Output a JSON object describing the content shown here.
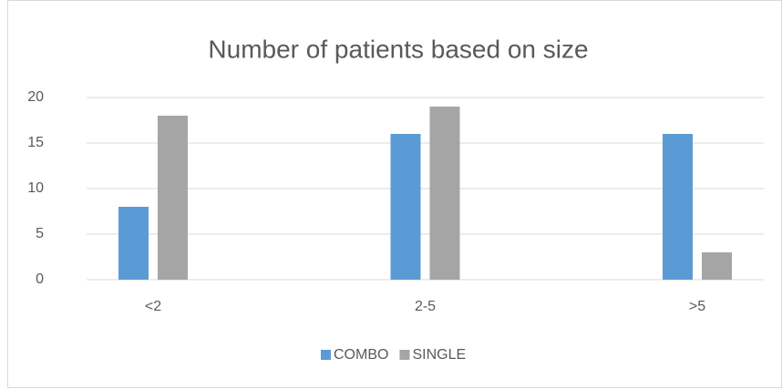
{
  "chart_data": {
    "type": "bar",
    "title": "Number of patients based on size",
    "categories": [
      "<2",
      "2-5",
      ">5"
    ],
    "series": [
      {
        "name": "COMBO",
        "color": "#5b9bd5",
        "values": [
          8,
          16,
          16
        ]
      },
      {
        "name": "SINGLE",
        "color": "#a5a5a5",
        "values": [
          18,
          19,
          3
        ]
      }
    ],
    "ylim": [
      0,
      20
    ],
    "yticks": [
      0,
      5,
      10,
      15,
      20
    ],
    "grid": true,
    "legend": "bottom"
  }
}
